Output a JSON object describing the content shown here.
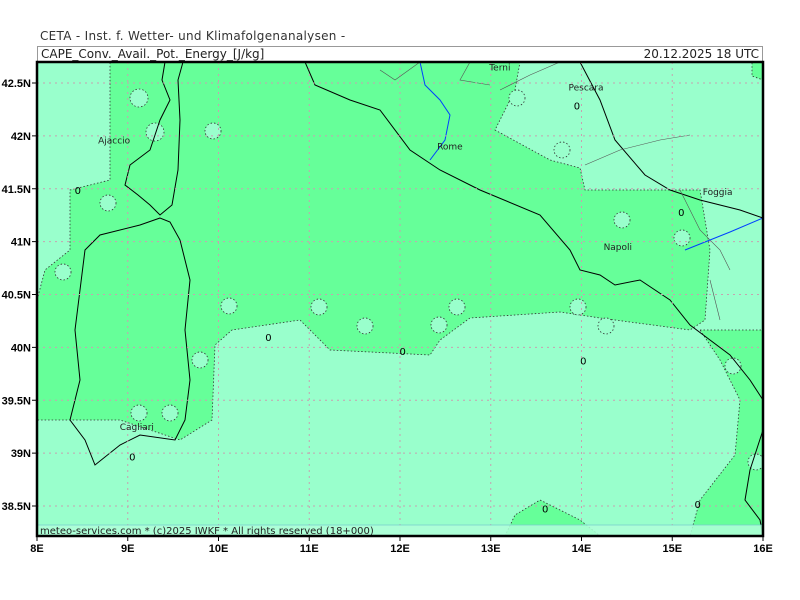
{
  "header": {
    "organization": "CETA - Inst. f. Wetter- und Klimafolgenanalysen -",
    "parameter": "CAPE_Conv._Avail._Pot._Energy_[J/kg]",
    "valid_time": "20.12.2025 18 UTC"
  },
  "footer": "meteo-services.com * (c)2025 IWKF * All rights reserved (18+000)",
  "map": {
    "lon_ticks": [
      "8E",
      "9E",
      "10E",
      "11E",
      "12E",
      "13E",
      "14E",
      "15E",
      "16E"
    ],
    "lat_ticks": [
      "42.5N",
      "42N",
      "41.5N",
      "41N",
      "40.5N",
      "40N",
      "39.5N",
      "39N",
      "38.5N"
    ],
    "colors": {
      "low": "#99ffcc",
      "band_0": "#66ff99",
      "grid": "#c8a0b0",
      "coast": "#000000",
      "river": "#0040ff"
    },
    "cities": [
      {
        "name": "Terni",
        "lon": 13.1,
        "lat": 42.62
      },
      {
        "name": "Pescara",
        "lon": 14.05,
        "lat": 42.43
      },
      {
        "name": "Ajaccio",
        "lon": 8.85,
        "lat": 41.93
      },
      {
        "name": "Rome",
        "lon": 12.55,
        "lat": 41.87
      },
      {
        "name": "Foggia",
        "lon": 15.5,
        "lat": 41.44
      },
      {
        "name": "Napoli",
        "lon": 14.4,
        "lat": 40.92
      },
      {
        "name": "Cagliari",
        "lon": 9.1,
        "lat": 39.22
      }
    ],
    "contour_labels": [
      {
        "text": "0",
        "lon": 8.45,
        "lat": 41.45
      },
      {
        "text": "0",
        "lon": 13.95,
        "lat": 42.25
      },
      {
        "text": "0",
        "lon": 15.1,
        "lat": 41.24
      },
      {
        "text": "0",
        "lon": 10.55,
        "lat": 40.06
      },
      {
        "text": "0",
        "lon": 12.03,
        "lat": 39.93
      },
      {
        "text": "0",
        "lon": 14.02,
        "lat": 39.84
      },
      {
        "text": "0",
        "lon": 9.05,
        "lat": 38.93
      },
      {
        "text": "0",
        "lon": 13.6,
        "lat": 38.44
      },
      {
        "text": "0",
        "lon": 15.28,
        "lat": 38.48
      }
    ]
  }
}
